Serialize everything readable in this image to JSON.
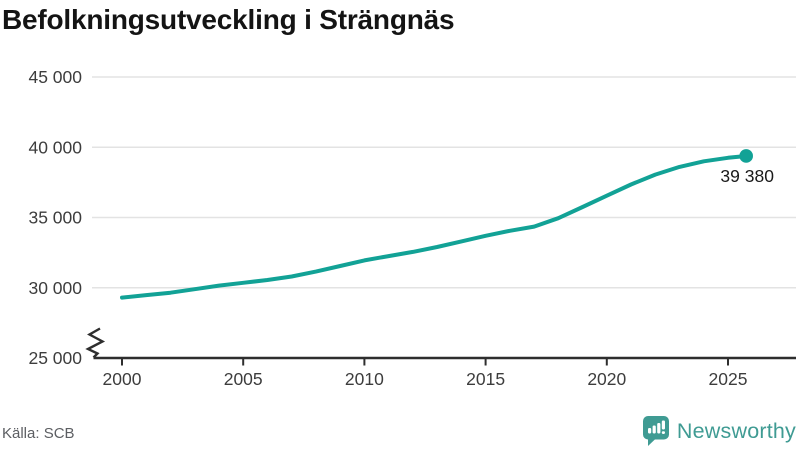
{
  "header": {
    "title": "Befolkningsutveckling i Strängnäs"
  },
  "footer": {
    "source": "Källa: SCB",
    "brand": "Newsworthy"
  },
  "colors": {
    "line": "#12A296",
    "brand_teal": "#3F9B93",
    "grid": "#e3e3e3",
    "axis": "#2e2e2e",
    "tick_label": "#3d3d3d",
    "end_label": "#1a1a1a"
  },
  "chart_data": {
    "type": "line",
    "title": "Befolkningsutveckling i Strängnäs",
    "source": "Källa: SCB",
    "x": [
      2000,
      2001,
      2002,
      2003,
      2004,
      2005,
      2006,
      2007,
      2008,
      2009,
      2010,
      2011,
      2012,
      2013,
      2014,
      2015,
      2016,
      2017,
      2018,
      2019,
      2020,
      2021,
      2022,
      2023,
      2024,
      2025,
      2025.75
    ],
    "values": [
      29300,
      29480,
      29650,
      29900,
      30150,
      30350,
      30550,
      30800,
      31150,
      31550,
      31950,
      32250,
      32550,
      32900,
      33300,
      33700,
      34050,
      34350,
      34950,
      35750,
      36550,
      37350,
      38050,
      38600,
      39000,
      39250,
      39380
    ],
    "end_value": 39380,
    "end_label": "39 380",
    "x_ticks": [
      2000,
      2005,
      2010,
      2015,
      2020,
      2025
    ],
    "x_tick_labels": [
      "2000",
      "2005",
      "2010",
      "2015",
      "2020",
      "2025"
    ],
    "y_ticks": [
      25000,
      30000,
      35000,
      40000,
      45000
    ],
    "y_tick_labels": [
      "25 000",
      "30 000",
      "35 000",
      "40 000",
      "45 000"
    ],
    "ylim": [
      25000,
      45000
    ],
    "xlim": [
      2000,
      2026.6
    ],
    "axis_break": true,
    "grid": true,
    "legend": "none"
  }
}
